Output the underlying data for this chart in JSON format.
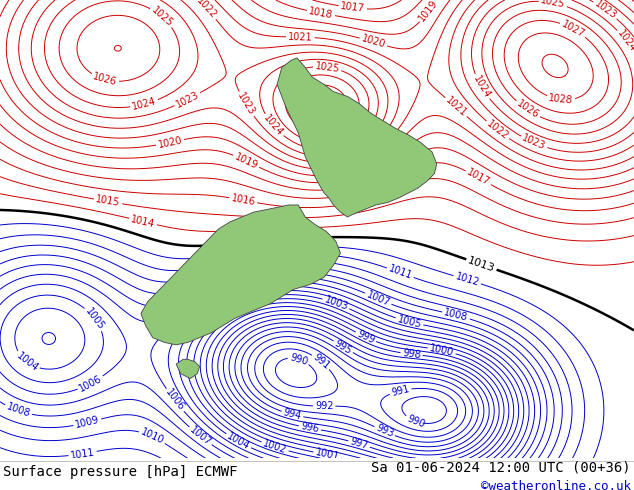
{
  "title_left": "Surface pressure [hPa] ECMWF",
  "title_right": "Sa 01-06-2024 12:00 UTC (00+36)",
  "credit": "©weatheronline.co.uk",
  "sea_color": "#e0e0e0",
  "land_color": "#90c878",
  "contour_color_high": "#cc0000",
  "contour_color_low": "#0000cc",
  "contour_color_black": "#000000",
  "font_size_title": 10,
  "font_size_credit": 9,
  "font_size_labels": 7,
  "lon_min": 160,
  "lon_max": 187,
  "lat_min": -51,
  "lat_max": -32
}
